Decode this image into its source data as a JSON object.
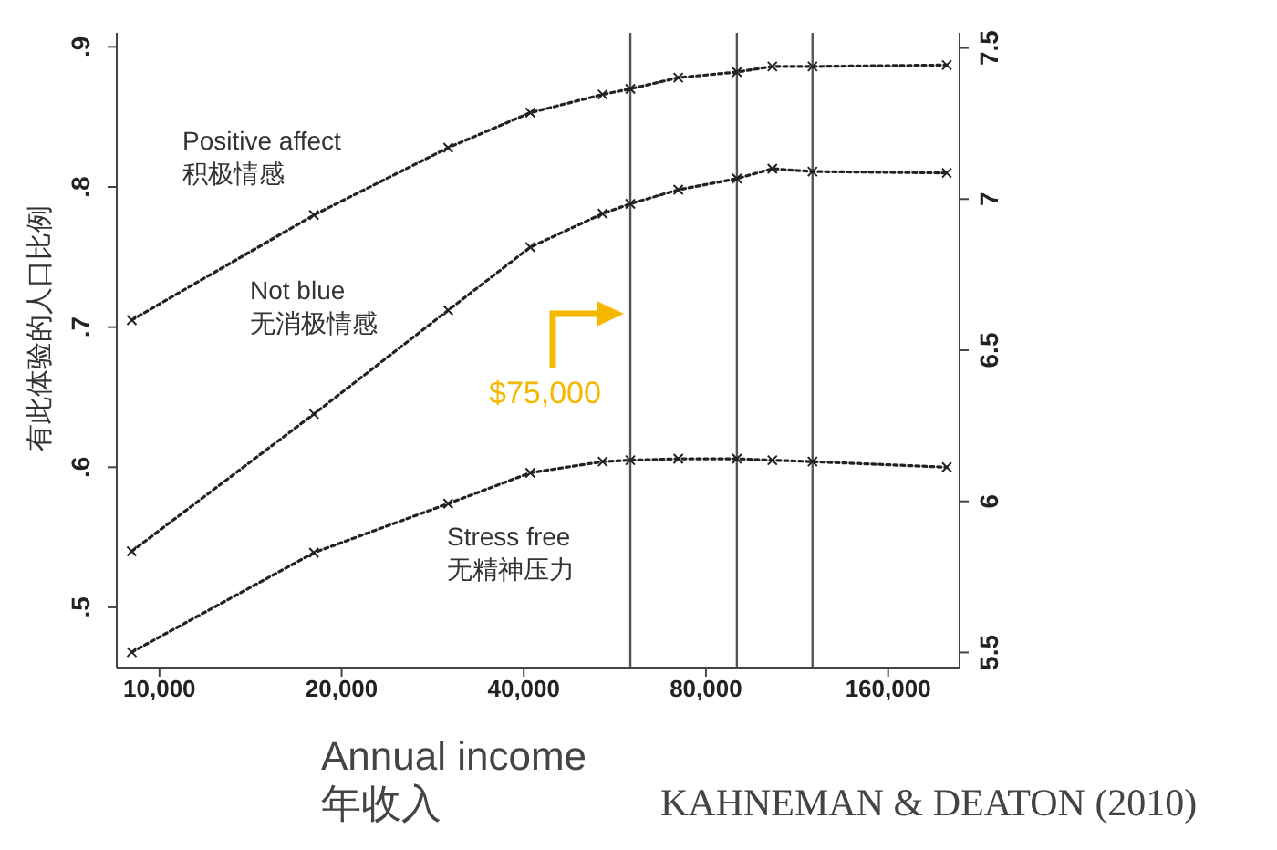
{
  "chart_data": {
    "type": "line",
    "ylabel": "有此体验的人口比例",
    "xlabel": "Annual income\n年收入",
    "x": [
      9000,
      18000,
      30000,
      41000,
      54000,
      60000,
      72000,
      90000,
      103000,
      120000,
      200000
    ],
    "series": [
      {
        "name": "Positive affect\n积极情感",
        "color": "#222222",
        "values": [
          0.705,
          0.78,
          0.828,
          0.853,
          0.866,
          0.87,
          0.878,
          0.882,
          0.886,
          0.886,
          0.887
        ]
      },
      {
        "name": "Not blue\n无消极情感",
        "color": "#222222",
        "values": [
          0.54,
          0.638,
          0.712,
          0.757,
          0.781,
          0.788,
          0.798,
          0.806,
          0.813,
          0.811,
          0.81
        ]
      },
      {
        "name": "Stress free\n无精神压力",
        "color": "#222222",
        "values": [
          0.468,
          0.539,
          0.574,
          0.596,
          0.604,
          0.605,
          0.606,
          0.606,
          0.605,
          0.604,
          0.6
        ]
      }
    ],
    "log": "x",
    "xlim": [
      8500,
      210000
    ],
    "xticks": [
      {
        "value": 10000,
        "label": "10,000"
      },
      {
        "value": 20000,
        "label": "20,000"
      },
      {
        "value": 40000,
        "label": "40,000"
      },
      {
        "value": 80000,
        "label": "80,000"
      },
      {
        "value": 160000,
        "label": "160,000"
      }
    ],
    "ylim": [
      0.457,
      0.91
    ],
    "yticks": [
      {
        "value": 0.5,
        "label": ".5"
      },
      {
        "value": 0.6,
        "label": ".6"
      },
      {
        "value": 0.7,
        "label": ".7"
      },
      {
        "value": 0.8,
        "label": ".8"
      },
      {
        "value": 0.9,
        "label": ".9"
      }
    ],
    "y2lim": [
      5.45,
      7.55
    ],
    "y2ticks": [
      5.5,
      6,
      {
        "value": 6.5,
        "label": "6.5"
      },
      7,
      7.5
    ],
    "ref_lines": [
      {
        "axis": "x",
        "value": 60000,
        "color": "#555555"
      },
      {
        "axis": "x",
        "value": 90000,
        "color": "#555555"
      },
      {
        "axis": "x",
        "value": 120000,
        "color": "#555555"
      }
    ],
    "annotations": [
      "$75,000",
      "KAHNEMAN & DEATON (2010)"
    ],
    "marker": "cross",
    "line_style": "dotted"
  }
}
